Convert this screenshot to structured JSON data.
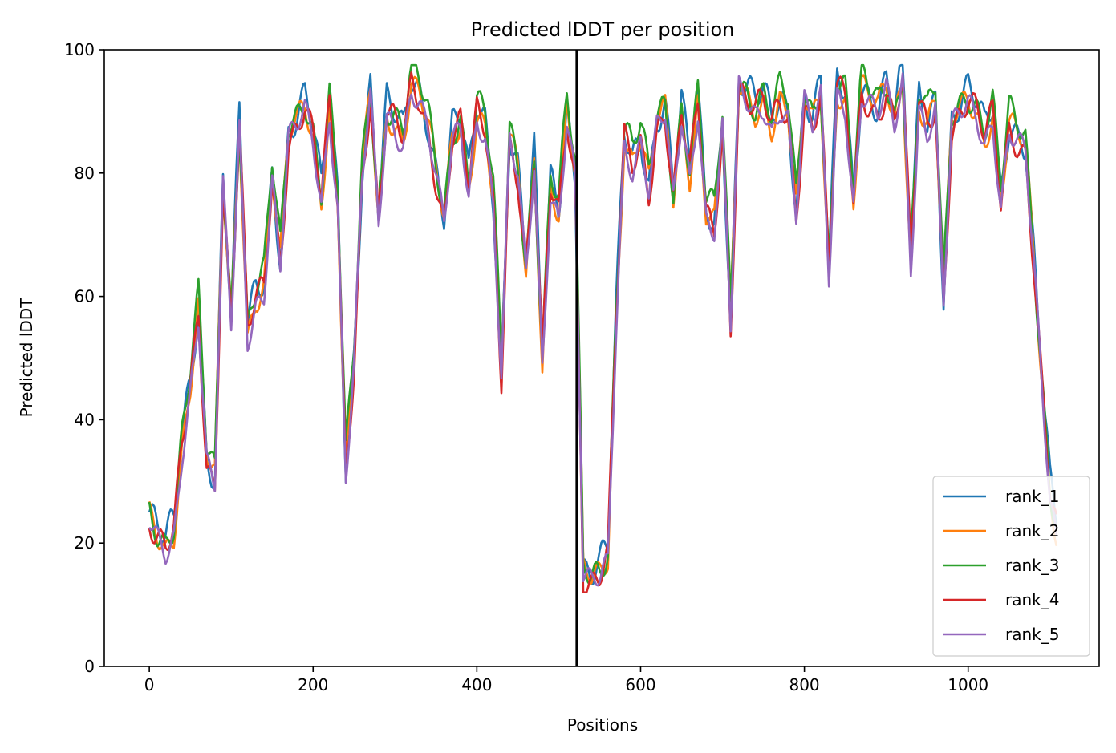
{
  "chart_data": {
    "type": "line",
    "title": "Predicted lDDT per position",
    "xlabel": "Positions",
    "ylabel": "Predicted lDDT",
    "xlim": [
      -55,
      1160
    ],
    "ylim": [
      0,
      100
    ],
    "xticks": [
      0,
      200,
      400,
      600,
      800,
      1000
    ],
    "yticks": [
      0,
      20,
      40,
      60,
      80,
      100
    ],
    "grid": false,
    "legend_position": "lower-right",
    "chain_break_x": 522,
    "chain_break_color": "#000000",
    "x_step": 10,
    "base_curve": [
      [
        0,
        24
      ],
      [
        10,
        21
      ],
      [
        20,
        19
      ],
      [
        30,
        22
      ],
      [
        40,
        36
      ],
      [
        50,
        46
      ],
      [
        60,
        58
      ],
      [
        70,
        34
      ],
      [
        80,
        30
      ],
      [
        90,
        78
      ],
      [
        100,
        56
      ],
      [
        110,
        88
      ],
      [
        120,
        54
      ],
      [
        130,
        60
      ],
      [
        140,
        62
      ],
      [
        150,
        80
      ],
      [
        160,
        66
      ],
      [
        170,
        86
      ],
      [
        180,
        88
      ],
      [
        190,
        91
      ],
      [
        200,
        86
      ],
      [
        210,
        76
      ],
      [
        220,
        91
      ],
      [
        230,
        76
      ],
      [
        240,
        32
      ],
      [
        250,
        50
      ],
      [
        260,
        80
      ],
      [
        270,
        93
      ],
      [
        280,
        72
      ],
      [
        290,
        90
      ],
      [
        300,
        88
      ],
      [
        310,
        86
      ],
      [
        320,
        95
      ],
      [
        330,
        93
      ],
      [
        340,
        88
      ],
      [
        350,
        80
      ],
      [
        360,
        72
      ],
      [
        370,
        86
      ],
      [
        380,
        88
      ],
      [
        390,
        78
      ],
      [
        400,
        90
      ],
      [
        410,
        88
      ],
      [
        420,
        76
      ],
      [
        430,
        48
      ],
      [
        440,
        86
      ],
      [
        450,
        80
      ],
      [
        460,
        64
      ],
      [
        470,
        82
      ],
      [
        480,
        50
      ],
      [
        490,
        78
      ],
      [
        500,
        74
      ],
      [
        510,
        90
      ],
      [
        520,
        80
      ],
      [
        530,
        15
      ],
      [
        540,
        14
      ],
      [
        550,
        15
      ],
      [
        560,
        18
      ],
      [
        570,
        56
      ],
      [
        580,
        86
      ],
      [
        590,
        82
      ],
      [
        600,
        86
      ],
      [
        610,
        78
      ],
      [
        620,
        88
      ],
      [
        630,
        90
      ],
      [
        640,
        76
      ],
      [
        650,
        90
      ],
      [
        660,
        80
      ],
      [
        670,
        92
      ],
      [
        680,
        74
      ],
      [
        690,
        72
      ],
      [
        700,
        88
      ],
      [
        710,
        56
      ],
      [
        720,
        94
      ],
      [
        730,
        92
      ],
      [
        740,
        90
      ],
      [
        750,
        92
      ],
      [
        760,
        88
      ],
      [
        770,
        92
      ],
      [
        780,
        90
      ],
      [
        790,
        74
      ],
      [
        800,
        92
      ],
      [
        810,
        88
      ],
      [
        820,
        93
      ],
      [
        830,
        64
      ],
      [
        840,
        94
      ],
      [
        850,
        92
      ],
      [
        860,
        76
      ],
      [
        870,
        94
      ],
      [
        880,
        92
      ],
      [
        890,
        90
      ],
      [
        900,
        94
      ],
      [
        910,
        88
      ],
      [
        920,
        96
      ],
      [
        930,
        66
      ],
      [
        940,
        92
      ],
      [
        950,
        88
      ],
      [
        960,
        92
      ],
      [
        970,
        60
      ],
      [
        980,
        88
      ],
      [
        990,
        90
      ],
      [
        1000,
        92
      ],
      [
        1010,
        90
      ],
      [
        1020,
        86
      ],
      [
        1030,
        90
      ],
      [
        1040,
        76
      ],
      [
        1050,
        88
      ],
      [
        1060,
        86
      ],
      [
        1070,
        84
      ],
      [
        1080,
        66
      ],
      [
        1090,
        46
      ],
      [
        1100,
        28
      ],
      [
        1108,
        22
      ]
    ],
    "series": [
      {
        "name": "rank_1",
        "color": "#1f77b4",
        "offset": 1.0,
        "amp": 2.2,
        "phase": 0.0
      },
      {
        "name": "rank_2",
        "color": "#ff7f0e",
        "offset": 0.0,
        "amp": 1.8,
        "phase": 1.3
      },
      {
        "name": "rank_3",
        "color": "#2ca02c",
        "offset": 1.5,
        "amp": 2.0,
        "phase": 2.1
      },
      {
        "name": "rank_4",
        "color": "#d62728",
        "offset": -0.5,
        "amp": 1.9,
        "phase": 3.4
      },
      {
        "name": "rank_5",
        "color": "#9467bd",
        "offset": -1.0,
        "amp": 1.6,
        "phase": 4.6
      }
    ]
  }
}
